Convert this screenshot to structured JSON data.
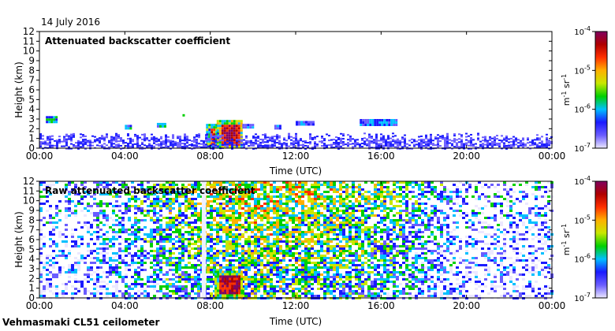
{
  "date": "14 July 2016",
  "instrument": "Vehmasmaki CL51 ceilometer",
  "colors": {
    "plot_bg": "#ffffff",
    "frame": "#000000"
  },
  "colorbar": {
    "tick_labels": [
      "10-4",
      "10-5",
      "10-6",
      "10-7"
    ],
    "unit": "m-1 sr-1",
    "colors": [
      "#ece8ff",
      "#6a5cff",
      "#1a1aff",
      "#00c0ff",
      "#00d000",
      "#c8e800",
      "#ffb000",
      "#ff3000",
      "#b00000",
      "#800060"
    ]
  },
  "chart_data": [
    {
      "type": "heatmap",
      "title": "Attenuated backscatter coefficient",
      "xlabel": "Time (UTC)",
      "ylabel": "Height (km)",
      "xticks": [
        "00:00",
        "04:00",
        "08:00",
        "12:00",
        "16:00",
        "20:00",
        "00:00"
      ],
      "yticks": [
        "0",
        "1",
        "2",
        "3",
        "4",
        "5",
        "6",
        "7",
        "8",
        "9",
        "10",
        "11",
        "12"
      ],
      "xlim_hours": [
        0,
        24
      ],
      "ylim_km": [
        0,
        12
      ],
      "features": [
        {
          "kind": "cloud",
          "t_start": 0.3,
          "t_end": 0.8,
          "h_base": 2.8,
          "h_top": 3.3,
          "level": 0.55
        },
        {
          "kind": "cloud",
          "t_start": 4.0,
          "t_end": 4.3,
          "h_base": 2.1,
          "h_top": 2.4,
          "level": 0.5
        },
        {
          "kind": "cloud",
          "t_start": 5.5,
          "t_end": 5.9,
          "h_base": 2.3,
          "h_top": 2.6,
          "level": 0.5
        },
        {
          "kind": "cloud",
          "t_start": 6.7,
          "t_end": 6.8,
          "h_base": 3.3,
          "h_top": 3.5,
          "level": 0.5
        },
        {
          "kind": "cloud",
          "t_start": 7.8,
          "t_end": 8.3,
          "h_base": 0.1,
          "h_top": 2.5,
          "level": 0.6
        },
        {
          "kind": "cloud",
          "t_start": 8.3,
          "t_end": 9.5,
          "h_base": 0.1,
          "h_top": 2.9,
          "level": 0.7
        },
        {
          "kind": "cloud",
          "t_start": 9.5,
          "t_end": 10.0,
          "h_base": 2.1,
          "h_top": 2.5,
          "level": 0.45
        },
        {
          "kind": "cloud",
          "t_start": 11.0,
          "t_end": 11.3,
          "h_base": 2.0,
          "h_top": 2.4,
          "level": 0.4
        },
        {
          "kind": "cloud",
          "t_start": 12.0,
          "t_end": 12.8,
          "h_base": 2.4,
          "h_top": 2.8,
          "level": 0.45
        },
        {
          "kind": "cloud",
          "t_start": 15.0,
          "t_end": 16.7,
          "h_base": 2.5,
          "h_top": 3.0,
          "level": 0.45
        },
        {
          "kind": "boundary_layer",
          "t_start": 0,
          "t_end": 24,
          "h_top": 1.6,
          "level": 0.15
        }
      ]
    },
    {
      "type": "heatmap",
      "title": "Raw attenuated backscatter coefficient",
      "xlabel": "Time (UTC)",
      "ylabel": "Height (km)",
      "xticks": [
        "00:00",
        "04:00",
        "08:00",
        "12:00",
        "16:00",
        "20:00",
        "00:00"
      ],
      "yticks": [
        "0",
        "1",
        "2",
        "3",
        "4",
        "5",
        "6",
        "7",
        "8",
        "9",
        "10",
        "11",
        "12"
      ],
      "xlim_hours": [
        0,
        24
      ],
      "ylim_km": [
        0,
        12
      ],
      "features": [
        {
          "kind": "noise_field",
          "t_start": 0,
          "t_end": 24,
          "h_base": 0,
          "h_top": 12,
          "level_day": 0.55,
          "level_night": 0.25
        },
        {
          "kind": "cloud",
          "t_start": 8.2,
          "t_end": 9.5,
          "h_base": 0.1,
          "h_top": 2.8,
          "level": 0.7
        },
        {
          "kind": "clear_column",
          "t_start": 7.6,
          "t_end": 7.8
        }
      ]
    }
  ]
}
